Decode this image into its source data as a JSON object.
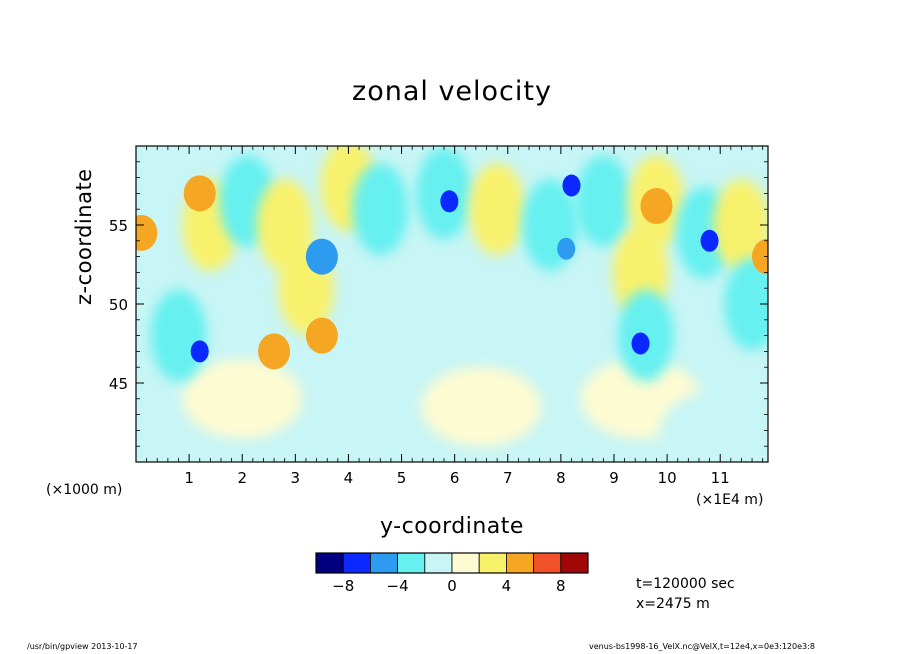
{
  "chart_data": {
    "type": "heatmap",
    "title": "zonal velocity",
    "xlabel": "y-coordinate",
    "ylabel": "z-coordinate",
    "x_unit_left": "(×1000 m)",
    "x_unit_right": "(×1E4 m)",
    "xlim": [
      0,
      11.9
    ],
    "ylim": [
      40,
      60
    ],
    "xticks": [
      1,
      2,
      3,
      4,
      5,
      6,
      7,
      8,
      9,
      10,
      11
    ],
    "xtick_labels": [
      "1",
      "2",
      "3",
      "4",
      "5",
      "6",
      "7",
      "8",
      "9",
      "10",
      "11"
    ],
    "yticks": [
      45,
      50,
      55
    ],
    "ytick_labels": [
      "45",
      "50",
      "55"
    ],
    "colorbar": {
      "levels": [
        -10,
        -8,
        -6,
        -4,
        -2,
        0,
        2,
        4,
        6,
        8,
        10
      ],
      "colors": [
        "#000080",
        "#0a28ff",
        "#2c9bf0",
        "#66f0f0",
        "#c8f5f5",
        "#fdfbd2",
        "#f8f16c",
        "#f5a623",
        "#f0502a",
        "#a00808"
      ],
      "labels": [
        "−8",
        "−4",
        "0",
        "4",
        "8"
      ],
      "label_values": [
        -8,
        -4,
        0,
        4,
        8
      ]
    },
    "regions": [
      {
        "y": 1.2,
        "z": 57.0,
        "value": 5
      },
      {
        "y": 0.1,
        "z": 54.5,
        "value": 5
      },
      {
        "y": 1.4,
        "z": 55.0,
        "value": 3
      },
      {
        "y": 2.1,
        "z": 56.5,
        "value": -3
      },
      {
        "y": 2.8,
        "z": 55.0,
        "value": 3
      },
      {
        "y": 3.2,
        "z": 51.0,
        "value": 3
      },
      {
        "y": 3.5,
        "z": 53.0,
        "value": -5
      },
      {
        "y": 3.5,
        "z": 48.0,
        "value": 5
      },
      {
        "y": 2.6,
        "z": 47.0,
        "value": 5
      },
      {
        "y": 4.0,
        "z": 57.5,
        "value": 3
      },
      {
        "y": 0.8,
        "z": 48.0,
        "value": -3
      },
      {
        "y": 1.2,
        "z": 47.0,
        "value": -7
      },
      {
        "y": 4.6,
        "z": 56.0,
        "value": -3
      },
      {
        "y": 5.4,
        "z": 52.0,
        "value": -2
      },
      {
        "y": 5.8,
        "z": 57.0,
        "value": -3
      },
      {
        "y": 5.9,
        "z": 56.5,
        "value": -7
      },
      {
        "y": 6.8,
        "z": 56.0,
        "value": 3
      },
      {
        "y": 7.2,
        "z": 52.0,
        "value": -2
      },
      {
        "y": 7.8,
        "z": 55.0,
        "value": -3
      },
      {
        "y": 8.1,
        "z": 53.5,
        "value": -6
      },
      {
        "y": 8.2,
        "z": 57.5,
        "value": -7
      },
      {
        "y": 8.8,
        "z": 56.5,
        "value": -3
      },
      {
        "y": 9.5,
        "z": 52.0,
        "value": 3
      },
      {
        "y": 9.6,
        "z": 48.0,
        "value": -3
      },
      {
        "y": 9.5,
        "z": 47.5,
        "value": -7
      },
      {
        "y": 9.8,
        "z": 56.5,
        "value": 3
      },
      {
        "y": 9.8,
        "z": 56.2,
        "value": 5
      },
      {
        "y": 10.7,
        "z": 54.5,
        "value": -3
      },
      {
        "y": 10.8,
        "z": 54.0,
        "value": -7
      },
      {
        "y": 11.4,
        "z": 55.0,
        "value": 3
      },
      {
        "y": 11.9,
        "z": 53.0,
        "value": 5
      },
      {
        "y": 11.6,
        "z": 50.0,
        "value": -3
      },
      {
        "y": 2.0,
        "z": 44.0,
        "value": 1
      },
      {
        "y": 6.5,
        "z": 43.5,
        "value": 1
      },
      {
        "y": 9.5,
        "z": 44.0,
        "value": 1
      },
      {
        "y": 11.0,
        "z": 42.0,
        "value": -1
      }
    ]
  },
  "info": {
    "time": "t=120000 sec",
    "position": "x=2475 m"
  },
  "footer": {
    "left": "/usr/bin/gpview  2013-10-17",
    "right": "venus-bs1998-16_VelX.nc@VelX,t=12e4,x=0e3:120e3:8"
  }
}
